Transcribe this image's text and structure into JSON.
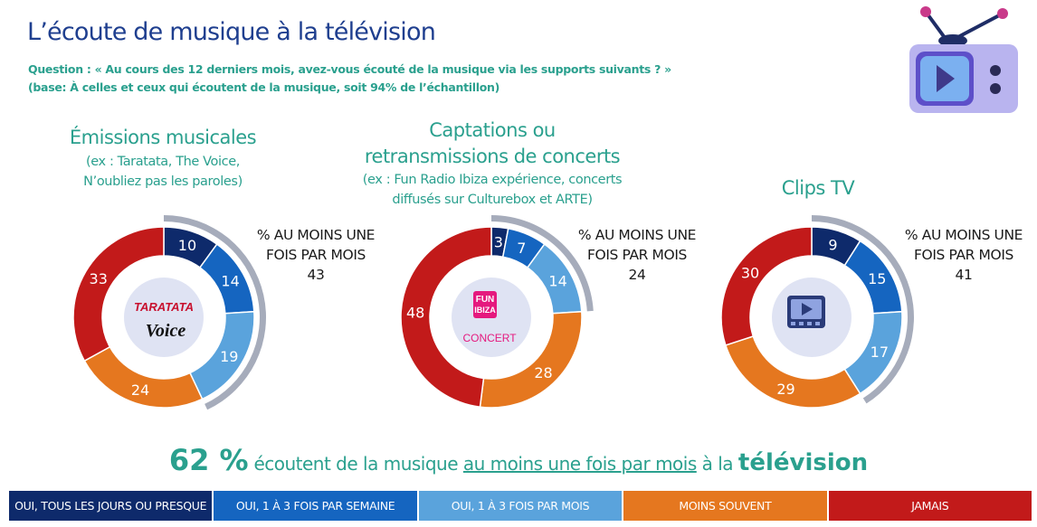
{
  "page": {
    "title": "L’écoute de musique à la télévision",
    "question_line1": "Question : « Au cours des 12 derniers mois, avez-vous écouté de la musique via les supports suivants ? »",
    "question_line2": "(base: À celles et ceux qui écoutent de la musique, soit 94% de l’échantillon)"
  },
  "colors": {
    "teal": "#2aa08e",
    "navy_title": "#1f3f8f",
    "bracket_gray": "#a6acbb",
    "center_circle": "#dfe3f3"
  },
  "kpi_label_line1": "% AU MOINS UNE",
  "kpi_label_line2": "FOIS PAR MOIS",
  "legend": [
    {
      "label": "OUI, TOUS LES JOURS OU PRESQUE",
      "color": "#0e2a6b"
    },
    {
      "label": "OUI, 1 À 3 FOIS PAR SEMAINE",
      "color": "#1565c0"
    },
    {
      "label": "OUI, 1 À 3 FOIS PAR MOIS",
      "color": "#5aa3dc"
    },
    {
      "label": "MOINS SOUVENT",
      "color": "#e5771f"
    },
    {
      "label": "JAMAIS",
      "color": "#c21a1a"
    }
  ],
  "summary": {
    "pct": "62 %",
    "t1": " écoutent de la musique ",
    "t2": "au moins une fois par mois",
    "t3": " à la ",
    "t4": "télévision"
  },
  "logos": {
    "c1_top": "TARATATA",
    "c1_bottom": "Voice",
    "c2_top1": "FUN",
    "c2_top2": "IBIZA",
    "c2_bottom": "CONCERT"
  },
  "chart_data": [
    {
      "type": "donut",
      "title": "Émissions musicales",
      "subtitle_lines": [
        "(ex : Taratata, The Voice,",
        "N’oubliez pas les paroles)"
      ],
      "categories": [
        "OUI, TOUS LES JOURS OU PRESQUE",
        "OUI, 1 À 3 FOIS PAR SEMAINE",
        "OUI, 1 À 3 FOIS PAR MOIS",
        "MOINS SOUVENT",
        "JAMAIS"
      ],
      "values": [
        10,
        14,
        19,
        24,
        33
      ],
      "at_least_monthly": 43
    },
    {
      "type": "donut",
      "title": "",
      "title_lines": [
        "Captations ou",
        "retransmissions de concerts"
      ],
      "subtitle_lines": [
        "(ex : Fun Radio Ibiza expérience, concerts",
        "diffusés  sur Culturebox et ARTE)"
      ],
      "categories": [
        "OUI, TOUS LES JOURS OU PRESQUE",
        "OUI, 1 À 3 FOIS PAR SEMAINE",
        "OUI, 1 À 3 FOIS PAR MOIS",
        "MOINS SOUVENT",
        "JAMAIS"
      ],
      "values": [
        3,
        7,
        14,
        28,
        48
      ],
      "at_least_monthly": 24
    },
    {
      "type": "donut",
      "title": "Clips TV",
      "subtitle_lines": [],
      "categories": [
        "OUI, TOUS LES JOURS OU PRESQUE",
        "OUI, 1 À 3 FOIS PAR SEMAINE",
        "OUI, 1 À 3 FOIS PAR MOIS",
        "MOINS SOUVENT",
        "JAMAIS"
      ],
      "values": [
        9,
        15,
        17,
        29,
        30
      ],
      "at_least_monthly": 41
    }
  ]
}
